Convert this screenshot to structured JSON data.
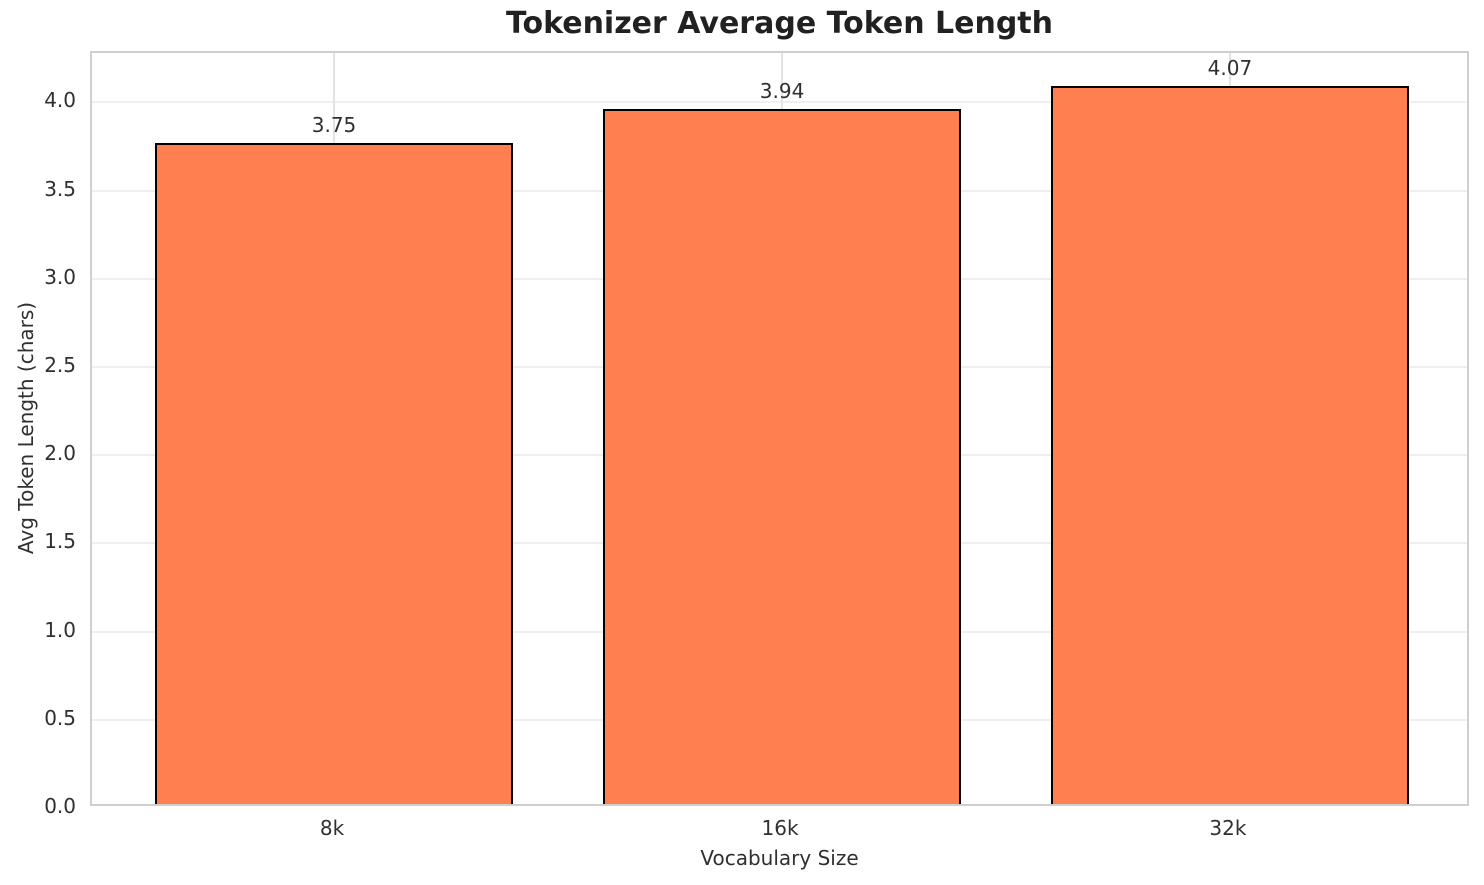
{
  "chart_data": {
    "type": "bar",
    "title": "Tokenizer Average Token Length",
    "xlabel": "Vocabulary Size",
    "ylabel": "Avg Token Length (chars)",
    "categories": [
      "8k",
      "16k",
      "32k"
    ],
    "values": [
      3.75,
      3.94,
      4.07
    ],
    "value_labels": [
      "3.75",
      "3.94",
      "4.07"
    ],
    "ytick_labels": [
      "0.0",
      "0.5",
      "1.0",
      "1.5",
      "2.0",
      "2.5",
      "3.0",
      "3.5",
      "4.0"
    ],
    "yticks": [
      0.0,
      0.5,
      1.0,
      1.5,
      2.0,
      2.5,
      3.0,
      3.5,
      4.0
    ],
    "ylim": [
      0,
      4.28
    ],
    "grid": true,
    "legend": null,
    "colors": {
      "bar_fill": "#FF7F50",
      "bar_edge": "#000000",
      "text": "#303030",
      "title_text": "#212121",
      "spine": "#cfcfcf",
      "gridline": "#efefef"
    }
  }
}
